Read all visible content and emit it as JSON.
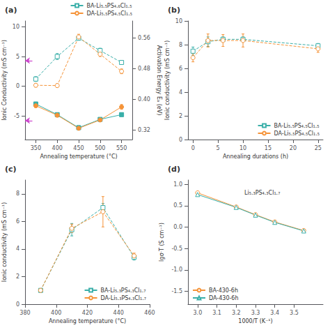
{
  "chart_data": [
    {
      "type": "line",
      "title": "(a)",
      "xlabel": "Annealing temperature (°C)",
      "ylabel": "Ionic Conductivity (mS cm⁻¹)",
      "y2label": "Activation Energy Eₐ (eV)",
      "xlim": [
        325,
        575
      ],
      "xticks": [
        350,
        400,
        450,
        500,
        550
      ],
      "ylim": [
        -9,
        11
      ],
      "yticks": [
        -5,
        0,
        5,
        10
      ],
      "y2lim": [
        0.295,
        0.605
      ],
      "y2ticks": [
        0.32,
        {
          "value": 0.4,
          "label": "0.40"
        },
        0.48,
        0.56
      ],
      "grid": false,
      "legend": "top",
      "series": [
        {
          "name": "BA-Li₅.₅PS₄.₆Cl₁.₅",
          "color": "#3aafa9",
          "marker": "open-square",
          "line_style": "dashed",
          "x": [
            350,
            400,
            450,
            500,
            550
          ],
          "values": [
            1.2,
            5.0,
            8.1,
            6.0,
            4.0
          ],
          "errors": [
            0.4,
            0.5,
            0.35,
            0.4,
            0.35
          ]
        },
        {
          "name": "DA-Li₅.₅PS₄.₅Cl₁.₅",
          "color": "#f59338",
          "marker": "open-circle",
          "line_style": "dashed",
          "x": [
            350,
            400,
            450,
            500,
            550
          ],
          "values": [
            0.15,
            0.1,
            8.3,
            5.4,
            2.5
          ],
          "errors": [
            0.3,
            0.3,
            0.45,
            0.4,
            0.4
          ]
        },
        {
          "color": "#3aafa9",
          "marker": "square",
          "line_style": "solid",
          "x": [
            350,
            400,
            450,
            500,
            550
          ],
          "values": [
            -3.0,
            -4.8,
            -7.0,
            -5.6,
            -4.8
          ],
          "errors": [
            0.3,
            0.3,
            0.35,
            0.3,
            0.3
          ]
        },
        {
          "color": "#f59338",
          "marker": "circle",
          "line_style": "solid",
          "x": [
            350,
            400,
            450,
            500,
            550
          ],
          "values": [
            -3.3,
            -4.9,
            -7.1,
            -5.7,
            -3.5
          ],
          "errors": [
            0.3,
            0.3,
            0.3,
            0.3,
            0.4
          ]
        }
      ],
      "arrows": [
        {
          "color": "#cc44cc",
          "from_x": 342,
          "to_x": 325,
          "y": 4.3
        },
        {
          "color": "#cc44cc",
          "from_x": 342,
          "to_x": 325,
          "y": -5.8
        }
      ]
    },
    {
      "type": "line",
      "title": "(b)",
      "xlabel": "Annealing durations (h)",
      "ylabel": "Ionic conductivity (mS cm⁻¹)",
      "xlim": [
        -1,
        26
      ],
      "xticks": [
        0,
        5,
        10,
        15,
        20,
        25
      ],
      "ylim": [
        0,
        10
      ],
      "yticks": [
        0,
        2,
        4,
        6,
        8,
        10
      ],
      "grid": false,
      "legend": "lower right",
      "series": [
        {
          "name": "BA-Li₅.₅PS₄.₅Cl₁.₅",
          "color": "#3aafa9",
          "marker": "open-square",
          "line_style": "dashed",
          "x": [
            0,
            3,
            6,
            10,
            25
          ],
          "values": [
            7.45,
            8.25,
            8.45,
            8.45,
            7.9
          ],
          "errors": [
            0.35,
            0.4,
            0.2,
            0.2,
            0.2
          ]
        },
        {
          "name": "DA-Li₅.₅PS₄.₅Cl₁.₅",
          "color": "#f59338",
          "marker": "open-circle",
          "line_style": "dashed",
          "x": [
            0,
            3,
            6,
            10,
            25
          ],
          "values": [
            6.9,
            8.35,
            8.35,
            8.35,
            7.65
          ],
          "errors": [
            0.35,
            0.55,
            0.5,
            0.55,
            0.3
          ]
        }
      ]
    },
    {
      "type": "line",
      "title": "(c)",
      "xlabel": "Annealing temperature (°C)",
      "ylabel": "Ionic conductivity (mS cm⁻¹)",
      "xlim": [
        380,
        460
      ],
      "xticks": [
        380,
        400,
        420,
        440,
        460
      ],
      "ylim": [
        0,
        9
      ],
      "yticks": [
        0,
        2,
        4,
        6,
        8
      ],
      "grid": false,
      "legend": "lower right",
      "series": [
        {
          "name": "BA-Li₅.₃PS₄.₃Cl₁.₇",
          "color": "#3aafa9",
          "marker": "open-square",
          "line_style": "dashed",
          "x": [
            390,
            410,
            430,
            450
          ],
          "values": [
            1.0,
            5.4,
            7.0,
            3.4
          ],
          "errors": [
            0.1,
            0.45,
            0.3,
            0.2
          ]
        },
        {
          "name": "DA-Li₅.₃PS₄.₃Cl₁.₇",
          "color": "#f59338",
          "marker": "open-circle",
          "line_style": "dashed",
          "x": [
            390,
            410,
            430,
            450
          ],
          "values": [
            1.0,
            5.5,
            6.7,
            3.5
          ],
          "errors": [
            0.1,
            0.3,
            1.1,
            0.2
          ]
        }
      ]
    },
    {
      "type": "line",
      "title": "(d)",
      "subtitle": "Li₅.₃PS₄.₃Cl₁.₇",
      "xlabel": "1000/T (K⁻¹)",
      "ylabel": "lgσ·T (S cm⁻¹)",
      "xlim": [
        2.95,
        3.65
      ],
      "xticks": [
        {
          "value": 3.0,
          "label": "3.0"
        },
        3.1,
        3.2,
        3.3,
        3.4,
        3.5
      ],
      "ylim": [
        -1.8,
        1.1
      ],
      "yticks": [
        -1.5,
        {
          "value": -1.0,
          "label": "-1.0"
        },
        -0.5,
        {
          "value": 0.0,
          "label": "0.0"
        },
        0.5,
        {
          "value": 1.0,
          "label": "1.0"
        }
      ],
      "grid": false,
      "legend": "lower left",
      "series": [
        {
          "name": "BA-430-6h",
          "color": "#f59338",
          "marker": "open-circle",
          "line_style": "solid",
          "x": [
            3.0,
            3.2,
            3.3,
            3.4,
            3.55
          ],
          "values": [
            0.8,
            0.47,
            0.29,
            0.12,
            -0.08
          ]
        },
        {
          "name": "DA-430-6h",
          "color": "#3aafa9",
          "marker": "open-triangle",
          "line_style": "solid",
          "x": [
            3.0,
            3.2,
            3.3,
            3.4,
            3.55
          ],
          "values": [
            0.76,
            0.46,
            0.28,
            0.11,
            -0.09
          ]
        }
      ]
    }
  ]
}
